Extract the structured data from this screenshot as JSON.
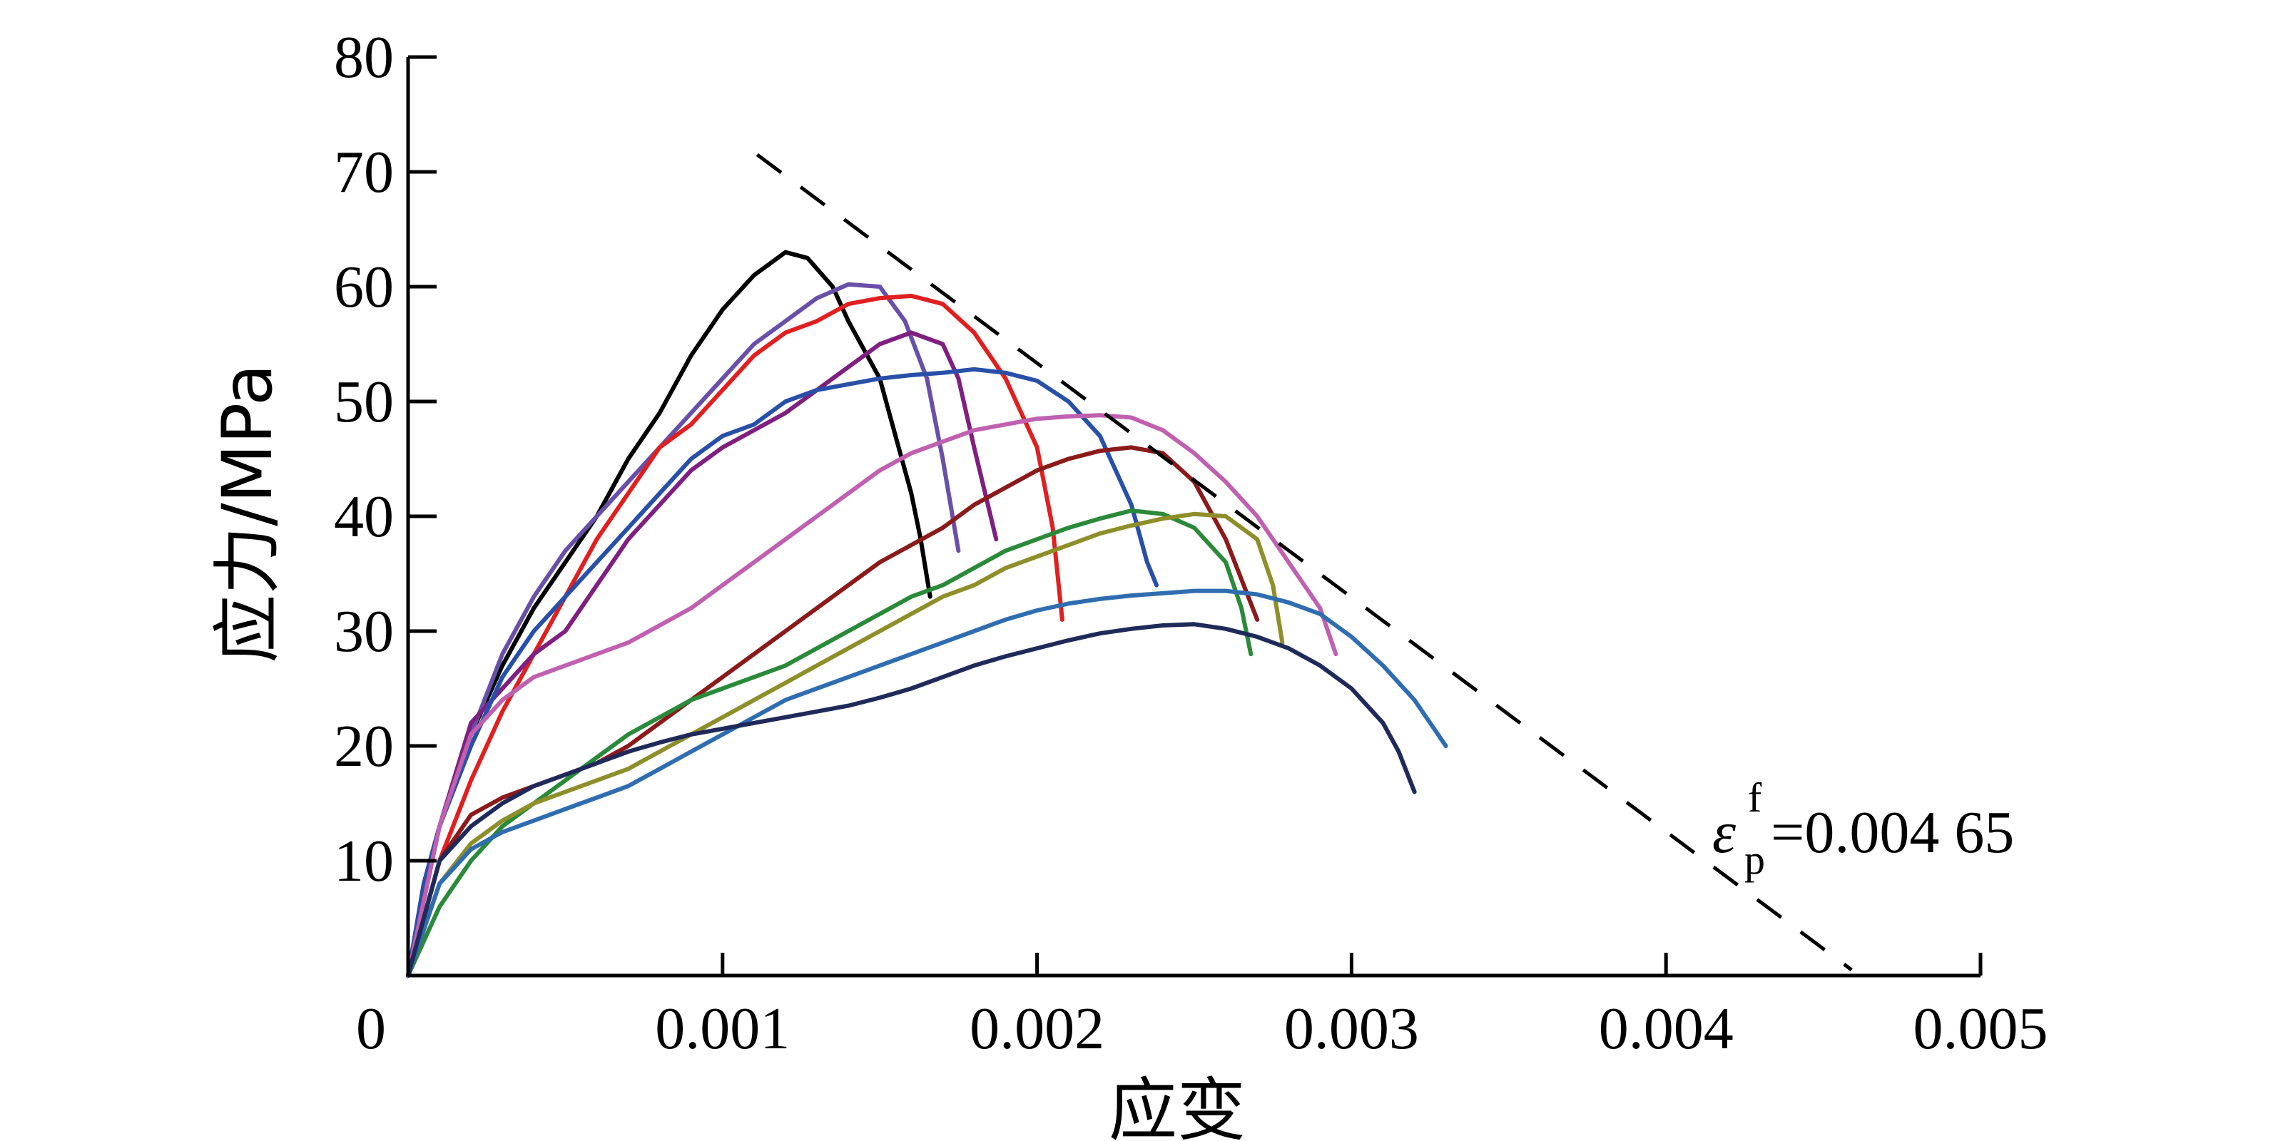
{
  "chart_data": {
    "type": "line",
    "xlabel": "应变",
    "ylabel": "应力/MPa",
    "xlim": [
      0,
      0.005
    ],
    "ylim": [
      0,
      80
    ],
    "x_ticks": [
      0,
      0.001,
      0.002,
      0.003,
      0.004,
      0.005
    ],
    "x_tick_labels": [
      "0",
      "0.001",
      "0.002",
      "0.003",
      "0.004",
      "0.005"
    ],
    "y_ticks": [
      10,
      20,
      30,
      40,
      50,
      60,
      70,
      80
    ],
    "y_tick_labels": [
      "10",
      "20",
      "30",
      "40",
      "50",
      "60",
      "70",
      "80"
    ],
    "annotation": {
      "symbol": "ε",
      "subscript": "p",
      "superscript": "f",
      "value_text": "=0.004 65",
      "value": 0.00465
    },
    "envelope": {
      "style": "dashed",
      "color": "#000000",
      "x": [
        0.00111,
        0.00459
      ],
      "y": [
        71.5,
        0.5
      ]
    },
    "series": [
      {
        "color": "#000000",
        "x": [
          0,
          5e-05,
          0.0001,
          0.0002,
          0.0003,
          0.0004,
          0.0005,
          0.0006,
          0.0007,
          0.0008,
          0.0009,
          0.001,
          0.0011,
          0.0012,
          0.00127,
          0.00135,
          0.0014,
          0.0015,
          0.00155,
          0.0016,
          0.00163,
          0.00166
        ],
        "y": [
          0,
          7,
          13,
          21,
          27,
          32,
          36,
          40,
          45,
          49,
          54,
          58,
          61,
          63,
          62.5,
          60,
          57,
          52,
          47,
          42,
          38,
          33
        ]
      },
      {
        "color": "#6a4fa8",
        "x": [
          0,
          5e-05,
          0.0001,
          0.0002,
          0.0003,
          0.0004,
          0.0005,
          0.0006,
          0.0007,
          0.0008,
          0.0009,
          0.001,
          0.0011,
          0.0012,
          0.0013,
          0.0014,
          0.0015,
          0.00158,
          0.00165,
          0.0017,
          0.00175
        ],
        "y": [
          0,
          8,
          13,
          21,
          28,
          33,
          37,
          40,
          43,
          46,
          49,
          52,
          55,
          57,
          59,
          60.2,
          60,
          57,
          52,
          45,
          37
        ]
      },
      {
        "color": "#e02020",
        "x": [
          0,
          0.0001,
          0.0002,
          0.0003,
          0.0004,
          0.0005,
          0.0006,
          0.0007,
          0.0008,
          0.0009,
          0.001,
          0.0011,
          0.0012,
          0.0013,
          0.0014,
          0.0015,
          0.0016,
          0.0017,
          0.0018,
          0.0019,
          0.002,
          0.00205,
          0.00208
        ],
        "y": [
          0,
          10,
          17,
          23,
          28,
          33,
          38,
          42,
          46,
          48,
          51,
          54,
          56,
          57,
          58.5,
          59,
          59.2,
          58.5,
          56,
          52,
          46,
          39,
          31
        ]
      },
      {
        "color": "#7f1f80",
        "x": [
          0,
          5e-05,
          0.0001,
          0.0002,
          0.0003,
          0.0004,
          0.0005,
          0.0006,
          0.0007,
          0.0008,
          0.0009,
          0.001,
          0.0011,
          0.0012,
          0.0013,
          0.0014,
          0.0015,
          0.0016,
          0.0017,
          0.00175,
          0.0018,
          0.00187
        ],
        "y": [
          0,
          8,
          13,
          22,
          25,
          28,
          30,
          34,
          38,
          41,
          44,
          46,
          47.5,
          49,
          51,
          53,
          55,
          56,
          55,
          52,
          46,
          38
        ]
      },
      {
        "color": "#2850a8",
        "x": [
          0,
          5e-05,
          0.0001,
          0.0002,
          0.0003,
          0.0004,
          0.0005,
          0.0006,
          0.0007,
          0.0008,
          0.0009,
          0.001,
          0.0011,
          0.0012,
          0.0013,
          0.0014,
          0.0015,
          0.0016,
          0.0017,
          0.0018,
          0.0019,
          0.002,
          0.0021,
          0.0022,
          0.0023,
          0.00235,
          0.00238
        ],
        "y": [
          0,
          8,
          13,
          20,
          26,
          30,
          33,
          36,
          39,
          42,
          45,
          47,
          48,
          50,
          51,
          51.5,
          52,
          52.3,
          52.5,
          52.8,
          52.5,
          51.8,
          50,
          47,
          41,
          36,
          34
        ]
      },
      {
        "color": "#c060b0",
        "x": [
          0,
          0.0001,
          0.0002,
          0.0003,
          0.0004,
          0.0005,
          0.0006,
          0.0007,
          0.0008,
          0.0009,
          0.001,
          0.0011,
          0.0012,
          0.0013,
          0.0014,
          0.0015,
          0.0016,
          0.0017,
          0.0018,
          0.0019,
          0.002,
          0.0021,
          0.0022,
          0.0023,
          0.0024,
          0.0025,
          0.0026,
          0.0027,
          0.0028,
          0.0029,
          0.00295
        ],
        "y": [
          0,
          13,
          21,
          24,
          26,
          27,
          28,
          29,
          30.5,
          32,
          34,
          36,
          38,
          40,
          42,
          44,
          45.5,
          46.5,
          47.5,
          48,
          48.5,
          48.7,
          48.8,
          48.6,
          47.5,
          45.5,
          43,
          40,
          36,
          32,
          28
        ]
      },
      {
        "color": "#8b1a1a",
        "x": [
          0,
          0.0001,
          0.0002,
          0.0003,
          0.0004,
          0.0005,
          0.0006,
          0.0007,
          0.0008,
          0.0009,
          0.001,
          0.0011,
          0.0012,
          0.0013,
          0.0014,
          0.0015,
          0.0016,
          0.0017,
          0.0018,
          0.0019,
          0.002,
          0.0021,
          0.0022,
          0.0023,
          0.0024,
          0.0025,
          0.0026,
          0.0027
        ],
        "y": [
          0,
          10,
          14,
          15.5,
          16.5,
          17.5,
          18.5,
          20,
          22,
          24,
          26,
          28,
          30,
          32,
          34,
          36,
          37.5,
          39,
          41,
          42.5,
          44,
          45,
          45.7,
          46,
          45.5,
          43,
          38,
          31
        ]
      },
      {
        "color": "#2a8a3a",
        "x": [
          0,
          0.0001,
          0.0002,
          0.0003,
          0.0004,
          0.0005,
          0.0006,
          0.0007,
          0.0008,
          0.0009,
          0.001,
          0.0011,
          0.0012,
          0.0013,
          0.0014,
          0.0015,
          0.0016,
          0.0017,
          0.0018,
          0.0019,
          0.002,
          0.0021,
          0.0022,
          0.0023,
          0.0024,
          0.0025,
          0.0026,
          0.00265,
          0.00268
        ],
        "y": [
          0,
          6,
          10,
          13,
          15,
          17,
          19,
          21,
          22.5,
          24,
          25,
          26,
          27,
          28.5,
          30,
          31.5,
          33,
          34,
          35.5,
          37,
          38,
          39,
          39.8,
          40.5,
          40.2,
          39,
          36,
          32,
          28
        ]
      },
      {
        "color": "#8e8e2a",
        "x": [
          0,
          0.0001,
          0.0002,
          0.0003,
          0.0004,
          0.0005,
          0.0006,
          0.0007,
          0.0008,
          0.0009,
          0.001,
          0.0011,
          0.0012,
          0.0013,
          0.0014,
          0.0015,
          0.0016,
          0.0017,
          0.0018,
          0.0019,
          0.002,
          0.0021,
          0.0022,
          0.0023,
          0.0024,
          0.0025,
          0.0026,
          0.0027,
          0.00275,
          0.00278
        ],
        "y": [
          0,
          8,
          11.5,
          13.5,
          15,
          16,
          17,
          18,
          19.5,
          21,
          22.5,
          24,
          25.5,
          27,
          28.5,
          30,
          31.5,
          33,
          34,
          35.5,
          36.5,
          37.5,
          38.5,
          39.2,
          39.8,
          40.2,
          40,
          38,
          34,
          29
        ]
      },
      {
        "color": "#2f6db0",
        "x": [
          0,
          0.0001,
          0.0002,
          0.0003,
          0.0004,
          0.0005,
          0.0006,
          0.0007,
          0.0008,
          0.0009,
          0.001,
          0.0011,
          0.0012,
          0.0013,
          0.0014,
          0.0015,
          0.0016,
          0.0017,
          0.0018,
          0.0019,
          0.002,
          0.0021,
          0.0022,
          0.0023,
          0.0024,
          0.0025,
          0.0026,
          0.0027,
          0.0028,
          0.0029,
          0.003,
          0.0031,
          0.0032,
          0.00325,
          0.0033
        ],
        "y": [
          0,
          8,
          11,
          12.5,
          13.5,
          14.5,
          15.5,
          16.5,
          18,
          19.5,
          21,
          22.5,
          24,
          25,
          26,
          27,
          28,
          29,
          30,
          31,
          31.8,
          32.4,
          32.8,
          33.1,
          33.3,
          33.5,
          33.5,
          33.2,
          32.5,
          31.5,
          29.5,
          27,
          24,
          22,
          20
        ]
      },
      {
        "color": "#1f2a5a",
        "x": [
          0,
          0.0001,
          0.0002,
          0.0003,
          0.0004,
          0.0005,
          0.0006,
          0.0007,
          0.0008,
          0.0009,
          0.001,
          0.0011,
          0.0012,
          0.0013,
          0.0014,
          0.0015,
          0.0016,
          0.0017,
          0.0018,
          0.0019,
          0.002,
          0.0021,
          0.0022,
          0.0023,
          0.0024,
          0.0025,
          0.0026,
          0.0027,
          0.0028,
          0.0029,
          0.003,
          0.0031,
          0.00315,
          0.0032
        ],
        "y": [
          0,
          10,
          13,
          15,
          16.5,
          17.5,
          18.5,
          19.5,
          20.3,
          21,
          21.5,
          22,
          22.5,
          23,
          23.5,
          24.2,
          25,
          26,
          27,
          27.8,
          28.5,
          29.2,
          29.8,
          30.2,
          30.5,
          30.6,
          30.2,
          29.5,
          28.5,
          27,
          25,
          22,
          19.5,
          16
        ]
      }
    ]
  }
}
